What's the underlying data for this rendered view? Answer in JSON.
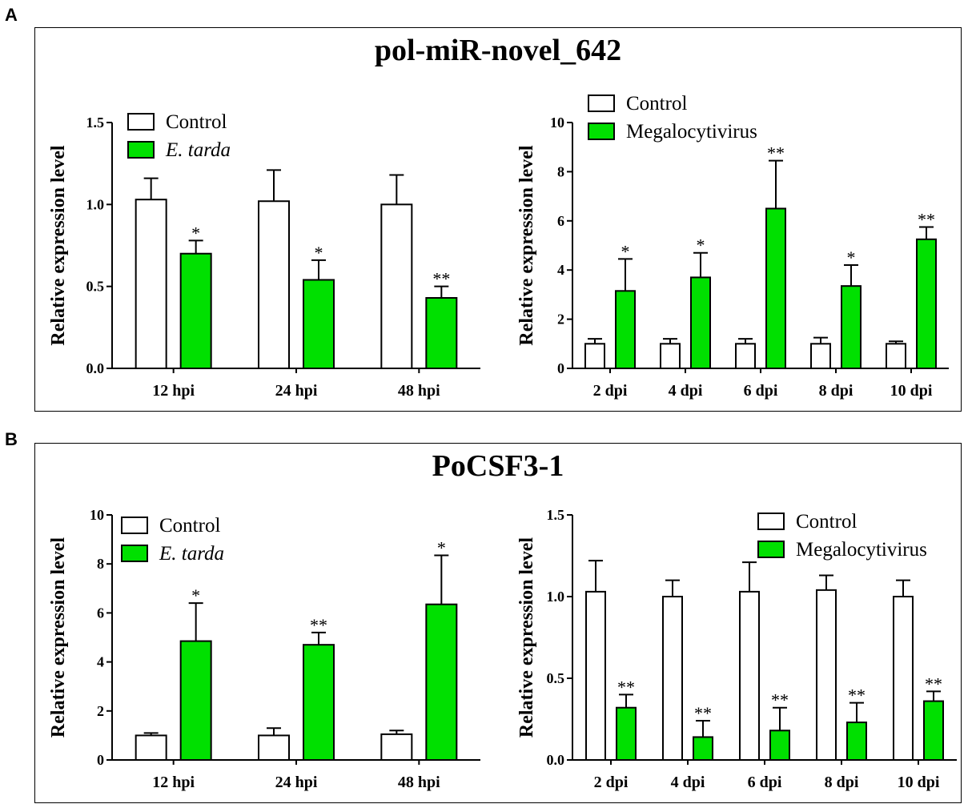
{
  "figure": {
    "panels": [
      {
        "letter": "A",
        "title": "pol-miR-novel_642"
      },
      {
        "letter": "B",
        "title": "PoCSF3-1"
      }
    ]
  },
  "colors": {
    "control": "#ffffff",
    "treated": "#00e000",
    "stroke": "#000000"
  },
  "chart_data": [
    {
      "type": "bar",
      "panel": "A",
      "title": "pol-miR-novel_642",
      "xlabel": "",
      "ylabel": "Relative  expression level",
      "categories": [
        "12 hpi",
        "24 hpi",
        "48 hpi"
      ],
      "ylim": [
        0,
        1.5
      ],
      "yticks": [
        "0.0",
        "0.5",
        "1.0",
        "1.5"
      ],
      "legend_position": "top-left",
      "series": [
        {
          "name": "Control",
          "italic": false,
          "values": [
            1.03,
            1.02,
            1.0
          ],
          "errors": [
            0.13,
            0.19,
            0.18
          ],
          "sig": [
            "",
            "",
            ""
          ]
        },
        {
          "name": "E. tarda",
          "italic": true,
          "values": [
            0.7,
            0.54,
            0.43
          ],
          "errors": [
            0.08,
            0.12,
            0.07
          ],
          "sig": [
            "*",
            "*",
            "**"
          ]
        }
      ]
    },
    {
      "type": "bar",
      "panel": "A",
      "xlabel": "",
      "ylabel": "Relative  expression level",
      "categories": [
        "2 dpi",
        "4 dpi",
        "6 dpi",
        "8 dpi",
        "10 dpi"
      ],
      "ylim": [
        0,
        10
      ],
      "yticks": [
        "0",
        "2",
        "4",
        "6",
        "8",
        "10"
      ],
      "legend_position": "top-left",
      "series": [
        {
          "name": "Control",
          "italic": false,
          "values": [
            1.0,
            1.0,
            1.0,
            1.0,
            1.0
          ],
          "errors": [
            0.2,
            0.2,
            0.2,
            0.25,
            0.1
          ],
          "sig": [
            "",
            "",
            "",
            "",
            ""
          ]
        },
        {
          "name": "Megalocytivirus",
          "italic": false,
          "values": [
            3.15,
            3.7,
            6.5,
            3.35,
            5.25
          ],
          "errors": [
            1.3,
            1.0,
            1.95,
            0.85,
            0.5
          ],
          "sig": [
            "*",
            "*",
            "**",
            "*",
            "**"
          ]
        }
      ]
    },
    {
      "type": "bar",
      "panel": "B",
      "title": "PoCSF3-1",
      "xlabel": "",
      "ylabel": "Relative  expression level",
      "categories": [
        "12 hpi",
        "24 hpi",
        "48 hpi"
      ],
      "ylim": [
        0,
        10
      ],
      "yticks": [
        "0",
        "2",
        "4",
        "6",
        "8",
        "10"
      ],
      "legend_position": "top-left",
      "series": [
        {
          "name": "Control",
          "italic": false,
          "values": [
            1.0,
            1.0,
            1.05
          ],
          "errors": [
            0.1,
            0.3,
            0.15
          ],
          "sig": [
            "",
            "",
            ""
          ]
        },
        {
          "name": "E. tarda",
          "italic": true,
          "values": [
            4.85,
            4.7,
            6.35
          ],
          "errors": [
            1.55,
            0.5,
            2.0
          ],
          "sig": [
            "*",
            "**",
            "*"
          ]
        }
      ]
    },
    {
      "type": "bar",
      "panel": "B",
      "xlabel": "",
      "ylabel": "Relative  expression level",
      "categories": [
        "2 dpi",
        "4 dpi",
        "6 dpi",
        "8 dpi",
        "10 dpi"
      ],
      "ylim": [
        0,
        1.5
      ],
      "yticks": [
        "0.0",
        "0.5",
        "1.0",
        "1.5"
      ],
      "legend_position": "top-right",
      "series": [
        {
          "name": "Control",
          "italic": false,
          "values": [
            1.03,
            1.0,
            1.03,
            1.04,
            1.0
          ],
          "errors": [
            0.19,
            0.1,
            0.18,
            0.09,
            0.1
          ],
          "sig": [
            "",
            "",
            "",
            "",
            ""
          ]
        },
        {
          "name": "Megalocytivirus",
          "italic": false,
          "values": [
            0.32,
            0.14,
            0.18,
            0.23,
            0.36
          ],
          "errors": [
            0.08,
            0.1,
            0.14,
            0.12,
            0.06
          ],
          "sig": [
            "**",
            "**",
            "**",
            "**",
            "**"
          ]
        }
      ]
    }
  ]
}
